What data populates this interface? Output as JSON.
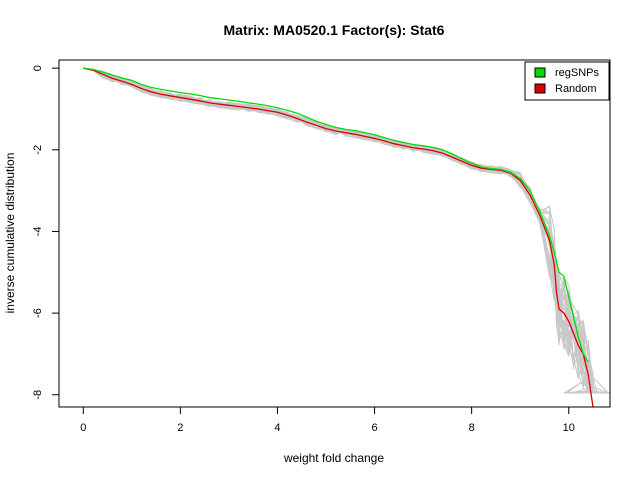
{
  "chart_data": {
    "type": "line",
    "title": "Matrix: MA0520.1 Factor(s): Stat6",
    "xlabel": "weight fold change",
    "ylabel": "inverse cumulative distribution",
    "xlim": [
      -0.5,
      10.85
    ],
    "ylim": [
      -8.3,
      0.2
    ],
    "xticks": [
      0,
      2,
      4,
      6,
      8,
      10
    ],
    "yticks": [
      0,
      -2,
      -4,
      -6,
      -8
    ],
    "grid": false,
    "legend_position": "top-right",
    "series": [
      {
        "name": "regSNPs",
        "color": "#00dd00",
        "x": [
          0,
          0.2,
          0.4,
          0.6,
          0.8,
          1.0,
          1.2,
          1.4,
          1.6,
          1.8,
          2.0,
          2.2,
          2.4,
          2.6,
          2.8,
          3.0,
          3.2,
          3.4,
          3.6,
          3.8,
          4.0,
          4.2,
          4.4,
          4.6,
          4.8,
          5.0,
          5.2,
          5.4,
          5.6,
          5.8,
          6.0,
          6.2,
          6.4,
          6.6,
          6.8,
          7.0,
          7.2,
          7.4,
          7.6,
          7.8,
          8.0,
          8.2,
          8.4,
          8.6,
          8.8,
          9.0,
          9.2,
          9.4,
          9.6,
          9.7,
          9.8,
          9.9,
          10.0,
          10.1,
          10.2,
          10.3,
          10.4
        ],
        "y": [
          0,
          -0.03,
          -0.1,
          -0.17,
          -0.24,
          -0.3,
          -0.4,
          -0.47,
          -0.52,
          -0.56,
          -0.6,
          -0.63,
          -0.67,
          -0.72,
          -0.75,
          -0.78,
          -0.81,
          -0.85,
          -0.88,
          -0.92,
          -0.97,
          -1.03,
          -1.1,
          -1.2,
          -1.3,
          -1.38,
          -1.45,
          -1.5,
          -1.53,
          -1.58,
          -1.63,
          -1.7,
          -1.77,
          -1.82,
          -1.87,
          -1.9,
          -1.94,
          -2.0,
          -2.1,
          -2.22,
          -2.33,
          -2.42,
          -2.46,
          -2.48,
          -2.55,
          -2.7,
          -3.0,
          -3.5,
          -4.1,
          -4.5,
          -5.0,
          -5.1,
          -5.6,
          -6.1,
          -6.6,
          -7.0,
          -7.2
        ]
      },
      {
        "name": "Random",
        "color": "#dd0000",
        "x": [
          0,
          0.2,
          0.4,
          0.6,
          0.8,
          1.0,
          1.2,
          1.4,
          1.6,
          1.8,
          2.0,
          2.2,
          2.4,
          2.6,
          2.8,
          3.0,
          3.2,
          3.4,
          3.6,
          3.8,
          4.0,
          4.2,
          4.4,
          4.6,
          4.8,
          5.0,
          5.2,
          5.4,
          5.6,
          5.8,
          6.0,
          6.2,
          6.4,
          6.6,
          6.8,
          7.0,
          7.2,
          7.4,
          7.6,
          7.8,
          8.0,
          8.2,
          8.4,
          8.6,
          8.8,
          9.0,
          9.2,
          9.4,
          9.6,
          9.7,
          9.75,
          9.8,
          9.9,
          10.0,
          10.1,
          10.2,
          10.3,
          10.4,
          10.5
        ],
        "y": [
          0,
          -0.05,
          -0.15,
          -0.25,
          -0.32,
          -0.4,
          -0.5,
          -0.58,
          -0.64,
          -0.68,
          -0.72,
          -0.76,
          -0.8,
          -0.85,
          -0.88,
          -0.91,
          -0.94,
          -0.97,
          -1.0,
          -1.04,
          -1.08,
          -1.15,
          -1.23,
          -1.32,
          -1.4,
          -1.48,
          -1.54,
          -1.58,
          -1.62,
          -1.67,
          -1.72,
          -1.78,
          -1.85,
          -1.9,
          -1.95,
          -1.98,
          -2.02,
          -2.08,
          -2.18,
          -2.28,
          -2.38,
          -2.45,
          -2.48,
          -2.5,
          -2.57,
          -2.75,
          -3.1,
          -3.6,
          -4.2,
          -4.8,
          -5.5,
          -5.9,
          -6.0,
          -6.2,
          -6.5,
          -6.8,
          -7.0,
          -7.5,
          -8.3
        ]
      }
    ],
    "background_series": {
      "color": "#c8c8c8",
      "count": 30,
      "x_end": 10.85,
      "y_end": -7.95
    }
  }
}
